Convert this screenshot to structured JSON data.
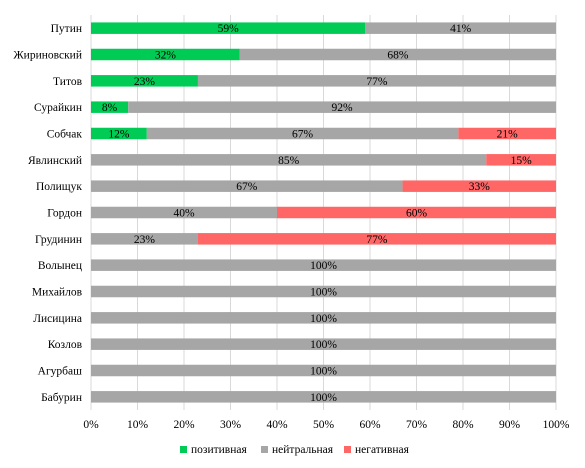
{
  "chart_data": {
    "type": "bar",
    "orientation": "horizontal",
    "stacked": true,
    "stack_mode": "percent",
    "categories": [
      "Путин",
      "Жириновский",
      "Титов",
      "Сурайкин",
      "Собчак",
      "Явлинский",
      "Полищук",
      "Гордон",
      "Грудинин",
      "Волынец",
      "Михайлов",
      "Лисицина",
      "Козлов",
      "Агурбаш",
      "Бабурин"
    ],
    "series": [
      {
        "name": "позитивная",
        "color": "#00cc55",
        "values": [
          59,
          32,
          23,
          8,
          12,
          0,
          0,
          0,
          0,
          0,
          0,
          0,
          0,
          0,
          0
        ],
        "labels": [
          "59%",
          "32%",
          "23%",
          "8%",
          "12%",
          "",
          "",
          "",
          "",
          "",
          "",
          "",
          "",
          "",
          ""
        ]
      },
      {
        "name": "нейтральная",
        "color": "#a6a6a6",
        "values": [
          41,
          68,
          77,
          92,
          67,
          85,
          67,
          40,
          23,
          100,
          100,
          100,
          100,
          100,
          100
        ],
        "labels": [
          "41%",
          "68%",
          "77%",
          "92%",
          "67%",
          "85%",
          "67%",
          "40%",
          "23%",
          "100%",
          "100%",
          "100%",
          "100%",
          "100%",
          "100%"
        ]
      },
      {
        "name": "негативная",
        "color": "#ff6666",
        "values": [
          0,
          0,
          0,
          0,
          21,
          15,
          33,
          60,
          77,
          0,
          0,
          0,
          0,
          0,
          0
        ],
        "labels": [
          "",
          "",
          "",
          "",
          "21%",
          "15%",
          "33%",
          "60%",
          "77%",
          "",
          "",
          "",
          "",
          "",
          ""
        ]
      }
    ],
    "x_ticks": [
      "0%",
      "10%",
      "20%",
      "30%",
      "40%",
      "50%",
      "60%",
      "70%",
      "80%",
      "90%",
      "100%"
    ],
    "xlim": [
      0,
      100
    ],
    "grid": true,
    "legend_position": "bottom"
  }
}
